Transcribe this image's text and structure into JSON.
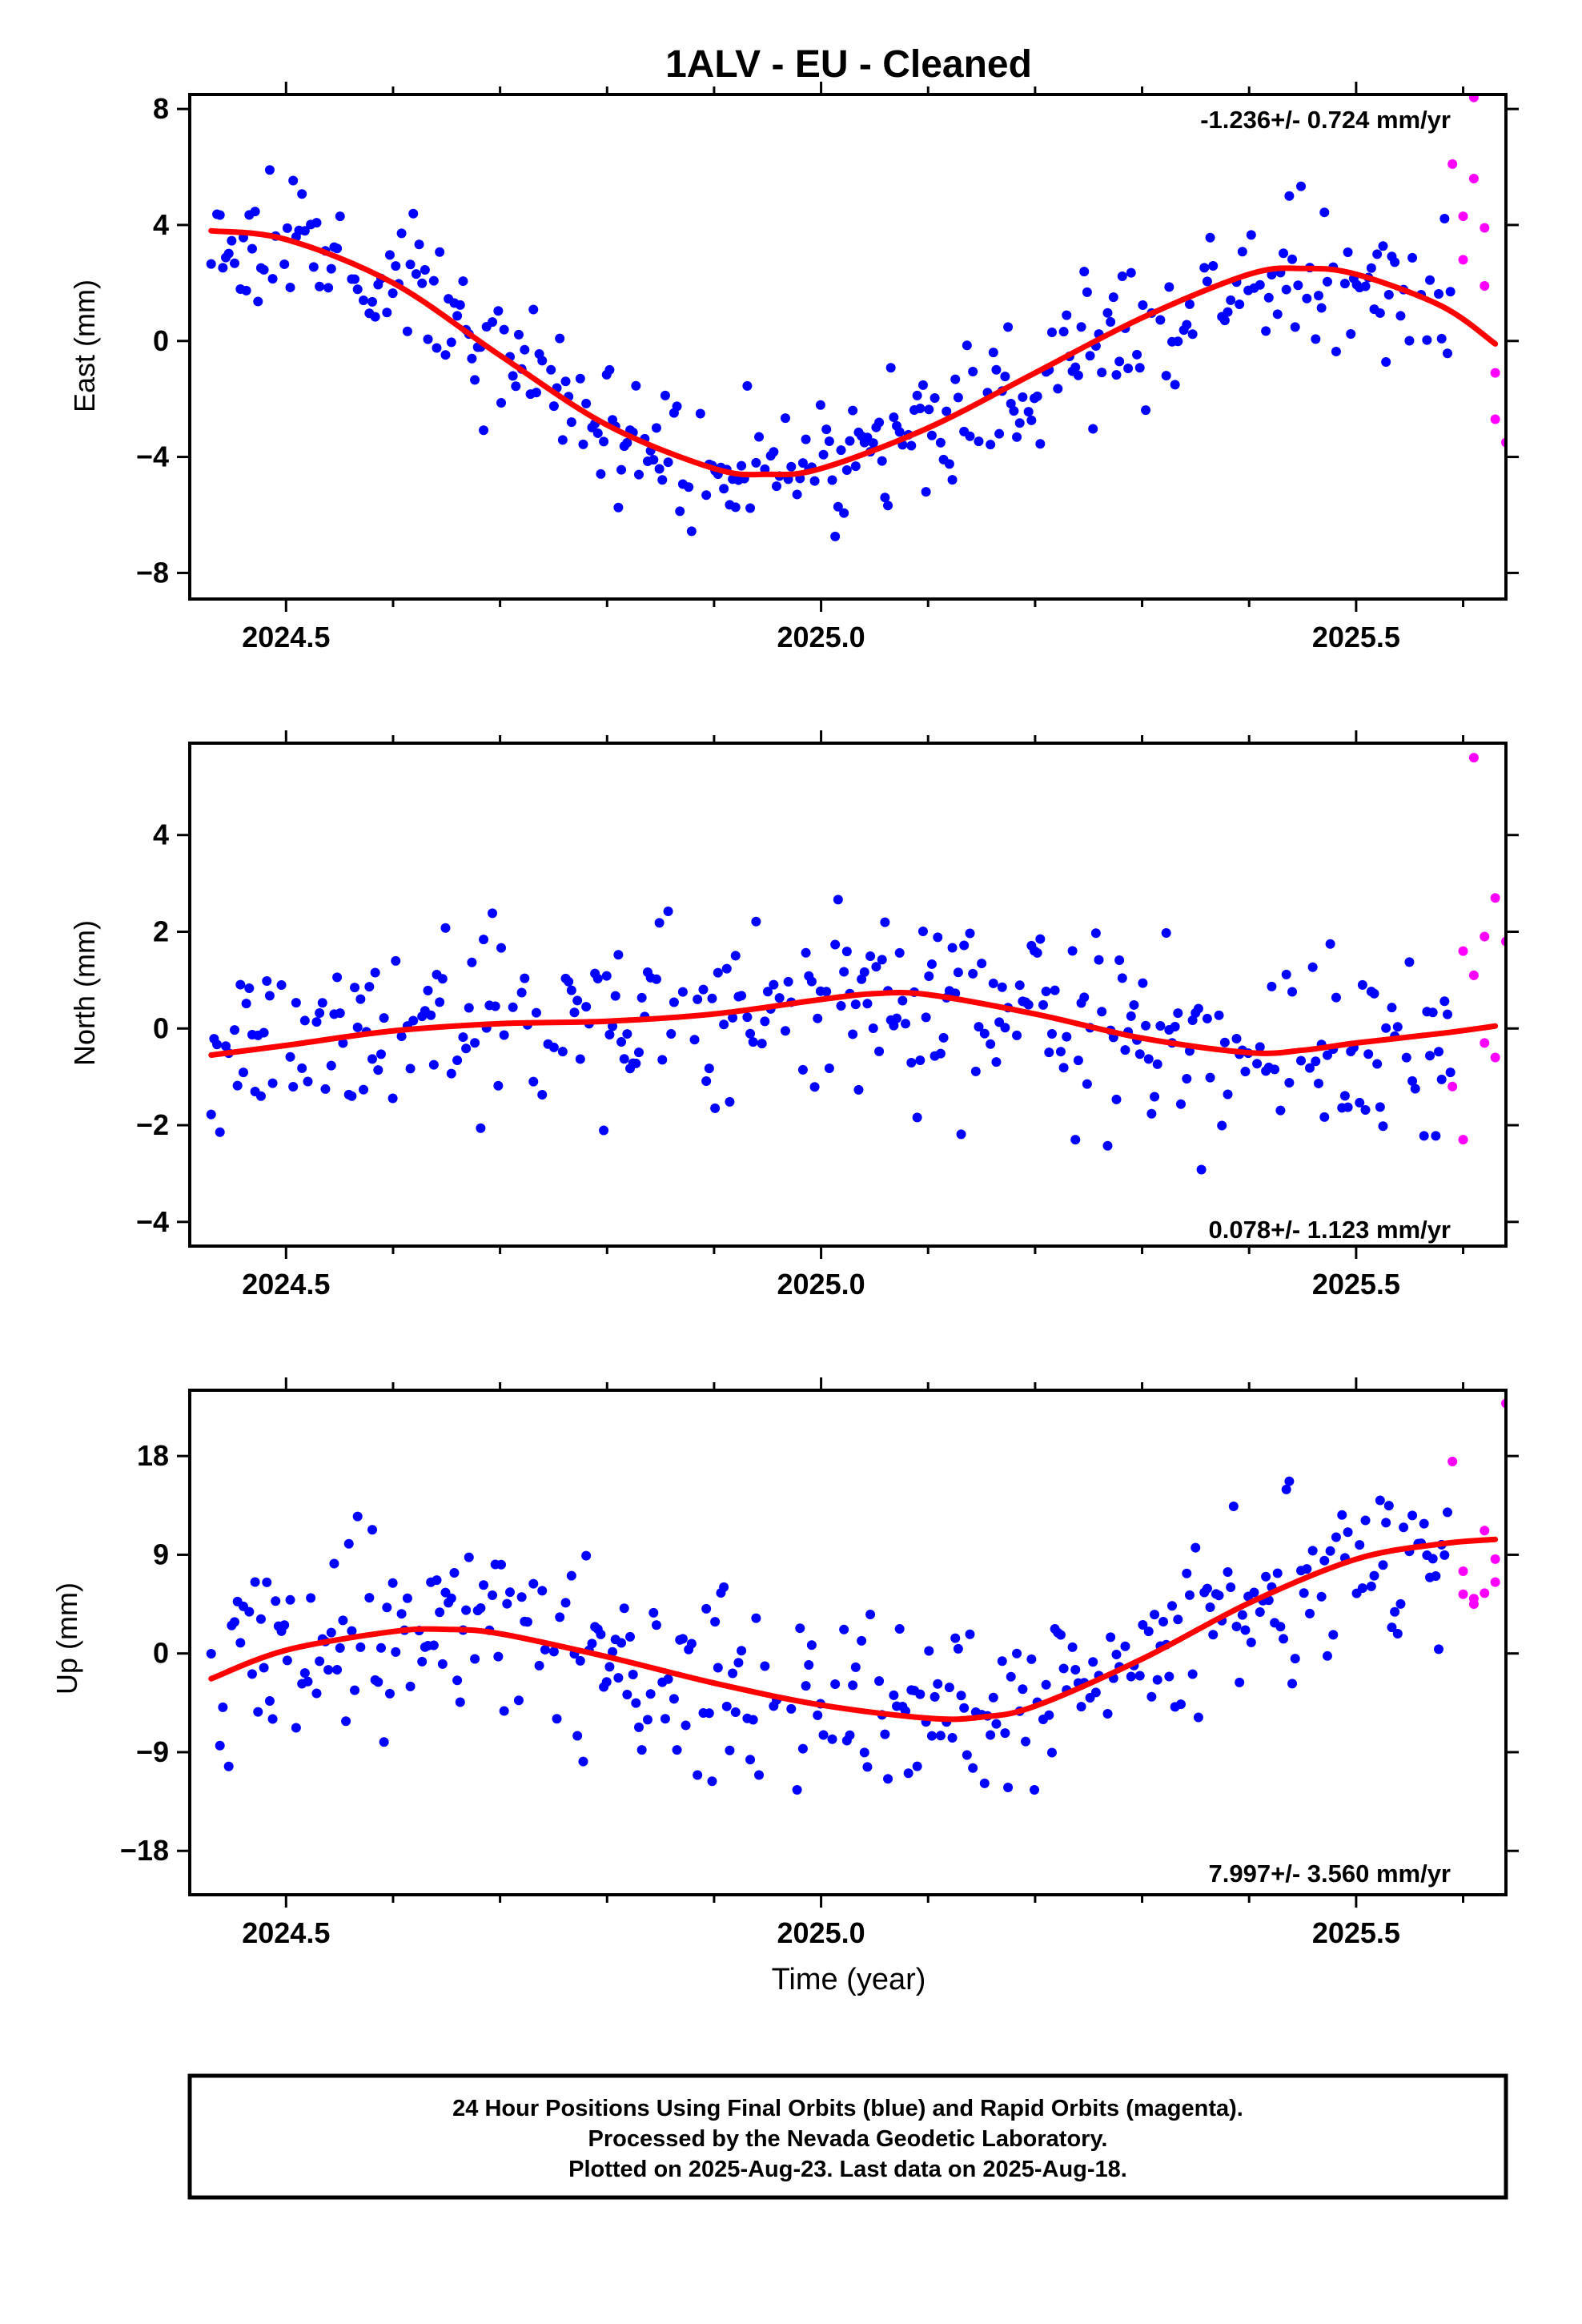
{
  "title": "1ALV  - EU - Cleaned",
  "colors": {
    "final": "#0000ff",
    "rapid": "#ff00ff",
    "model": "#ff0000"
  },
  "xlabel": "Time (year)",
  "xticks": [
    2024.5,
    2025.0,
    2025.5
  ],
  "xtick_labels": [
    "2024.5",
    "2025.0",
    "2025.5"
  ],
  "footer": {
    "line1": "24 Hour Positions Using Final Orbits (blue) and Rapid Orbits (magenta).",
    "line2": "Processed by the Nevada Geodetic Laboratory.",
    "line3": "Plotted on 2025-Aug-23. Last data on 2025-Aug-18."
  },
  "chart_data": [
    {
      "type": "scatter",
      "ylabel": "East (mm)",
      "rate_label": "-1.236+/- 0.724 mm/yr",
      "rate_position": "top-right",
      "xlim": [
        2024.41,
        2025.64
      ],
      "ylim": [
        -8.9,
        8.5
      ],
      "yticks": [
        -8,
        -4,
        0,
        4,
        8
      ],
      "ytick_labels": [
        "−8",
        "−4",
        "0",
        "4",
        "8"
      ],
      "model": {
        "x": [
          2024.43,
          2024.5,
          2024.6,
          2024.7,
          2024.8,
          2024.9,
          2024.95,
          2025.0,
          2025.1,
          2025.2,
          2025.3,
          2025.4,
          2025.45,
          2025.5,
          2025.58,
          2025.63
        ],
        "y": [
          3.8,
          3.5,
          2.0,
          -0.5,
          -2.9,
          -4.4,
          -4.6,
          -4.4,
          -3.0,
          -1.1,
          0.8,
          2.3,
          2.5,
          2.3,
          1.2,
          -0.1
        ]
      },
      "rapid": {
        "x": [
          2025.59,
          2025.6,
          2025.6,
          2025.61,
          2025.61,
          2025.62,
          2025.62,
          2025.63,
          2025.63,
          2025.64
        ],
        "y": [
          6.1,
          4.3,
          2.8,
          8.4,
          5.6,
          3.9,
          1.9,
          -1.1,
          -2.7,
          -3.5
        ]
      },
      "final_seed": 11,
      "final_noise": 1.2,
      "final_range": [
        2024.43,
        2025.59
      ]
    },
    {
      "type": "scatter",
      "ylabel": "North (mm)",
      "rate_label": "0.078+/- 1.123 mm/yr",
      "rate_position": "bottom-right",
      "xlim": [
        2024.41,
        2025.64
      ],
      "ylim": [
        -4.5,
        5.9
      ],
      "yticks": [
        -4,
        -2,
        0,
        2,
        4
      ],
      "ytick_labels": [
        "−4",
        "−2",
        "0",
        "2",
        "4"
      ],
      "model": {
        "x": [
          2024.43,
          2024.5,
          2024.6,
          2024.7,
          2024.8,
          2024.9,
          2025.0,
          2025.05,
          2025.1,
          2025.2,
          2025.3,
          2025.4,
          2025.45,
          2025.5,
          2025.58,
          2025.63
        ],
        "y": [
          -0.55,
          -0.35,
          -0.05,
          0.1,
          0.15,
          0.3,
          0.6,
          0.72,
          0.7,
          0.3,
          -0.2,
          -0.5,
          -0.45,
          -0.3,
          -0.1,
          0.05
        ]
      },
      "rapid": {
        "x": [
          2025.59,
          2025.6,
          2025.6,
          2025.61,
          2025.61,
          2025.62,
          2025.62,
          2025.63,
          2025.63,
          2025.64
        ],
        "y": [
          -1.2,
          -2.3,
          1.6,
          1.1,
          5.6,
          1.9,
          -0.3,
          2.7,
          -0.6,
          1.8
        ]
      },
      "final_seed": 23,
      "final_noise": 0.95,
      "final_range": [
        2024.43,
        2025.59
      ]
    },
    {
      "type": "scatter",
      "ylabel": "Up (mm)",
      "rate_label": "7.997+/- 3.560 mm/yr",
      "rate_position": "bottom-right",
      "xlim": [
        2024.41,
        2025.64
      ],
      "ylim": [
        -22,
        24
      ],
      "yticks": [
        -18,
        -9,
        0,
        9,
        18
      ],
      "ytick_labels": [
        "−18",
        "−9",
        "0",
        "9",
        "18"
      ],
      "model": {
        "x": [
          2024.43,
          2024.5,
          2024.6,
          2024.65,
          2024.7,
          2024.8,
          2024.9,
          2025.0,
          2025.1,
          2025.15,
          2025.2,
          2025.3,
          2025.4,
          2025.5,
          2025.58,
          2025.63
        ],
        "y": [
          -2.3,
          0.3,
          2.0,
          2.2,
          1.8,
          -0.3,
          -2.7,
          -4.7,
          -5.9,
          -5.8,
          -4.8,
          -0.5,
          4.6,
          8.6,
          10.0,
          10.4
        ]
      },
      "rapid": {
        "x": [
          2025.59,
          2025.6,
          2025.6,
          2025.61,
          2025.61,
          2025.62,
          2025.62,
          2025.63,
          2025.63,
          2025.64
        ],
        "y": [
          17.5,
          7.5,
          5.4,
          4.5,
          5.0,
          11.2,
          5.5,
          8.6,
          6.5,
          22.8
        ]
      },
      "final_seed": 37,
      "final_noise": 4.2,
      "final_range": [
        2024.43,
        2025.59
      ]
    }
  ]
}
